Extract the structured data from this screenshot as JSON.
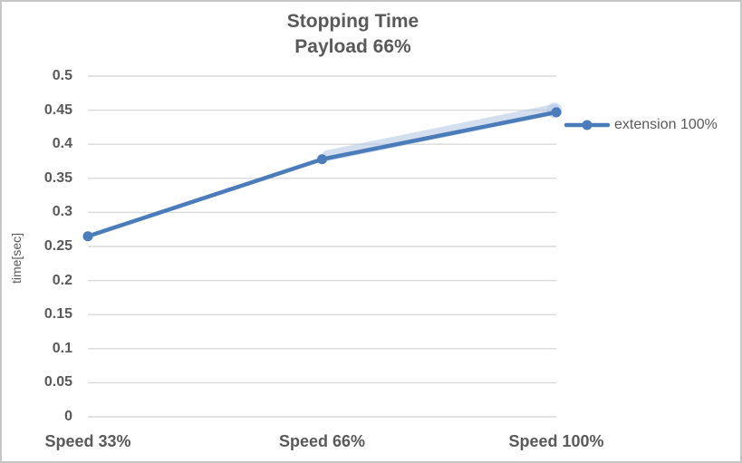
{
  "chart_data": {
    "type": "line",
    "title": "Stopping Time",
    "subtitle": "Payload 66%",
    "categories": [
      "Speed 33%",
      "Speed 66%",
      "Speed 100%"
    ],
    "series": [
      {
        "name": "extension 100%",
        "values": [
          0.265,
          0.378,
          0.447
        ]
      }
    ],
    "xlabel": "",
    "ylabel": "time[sec]",
    "ylim": [
      0,
      0.5
    ],
    "ytick_step": 0.05,
    "yticks": [
      "0",
      "0.05",
      "0.1",
      "0.15",
      "0.2",
      "0.25",
      "0.3",
      "0.35",
      "0.4",
      "0.45",
      "0.5"
    ],
    "grid": true,
    "legend_position": "right",
    "colors": {
      "accent": "#4a7cba",
      "glow": "#b6cae6",
      "gridline": "#d9d9d9",
      "text": "#595959",
      "border": "#c6c6c6",
      "background": "#ffffff"
    }
  }
}
